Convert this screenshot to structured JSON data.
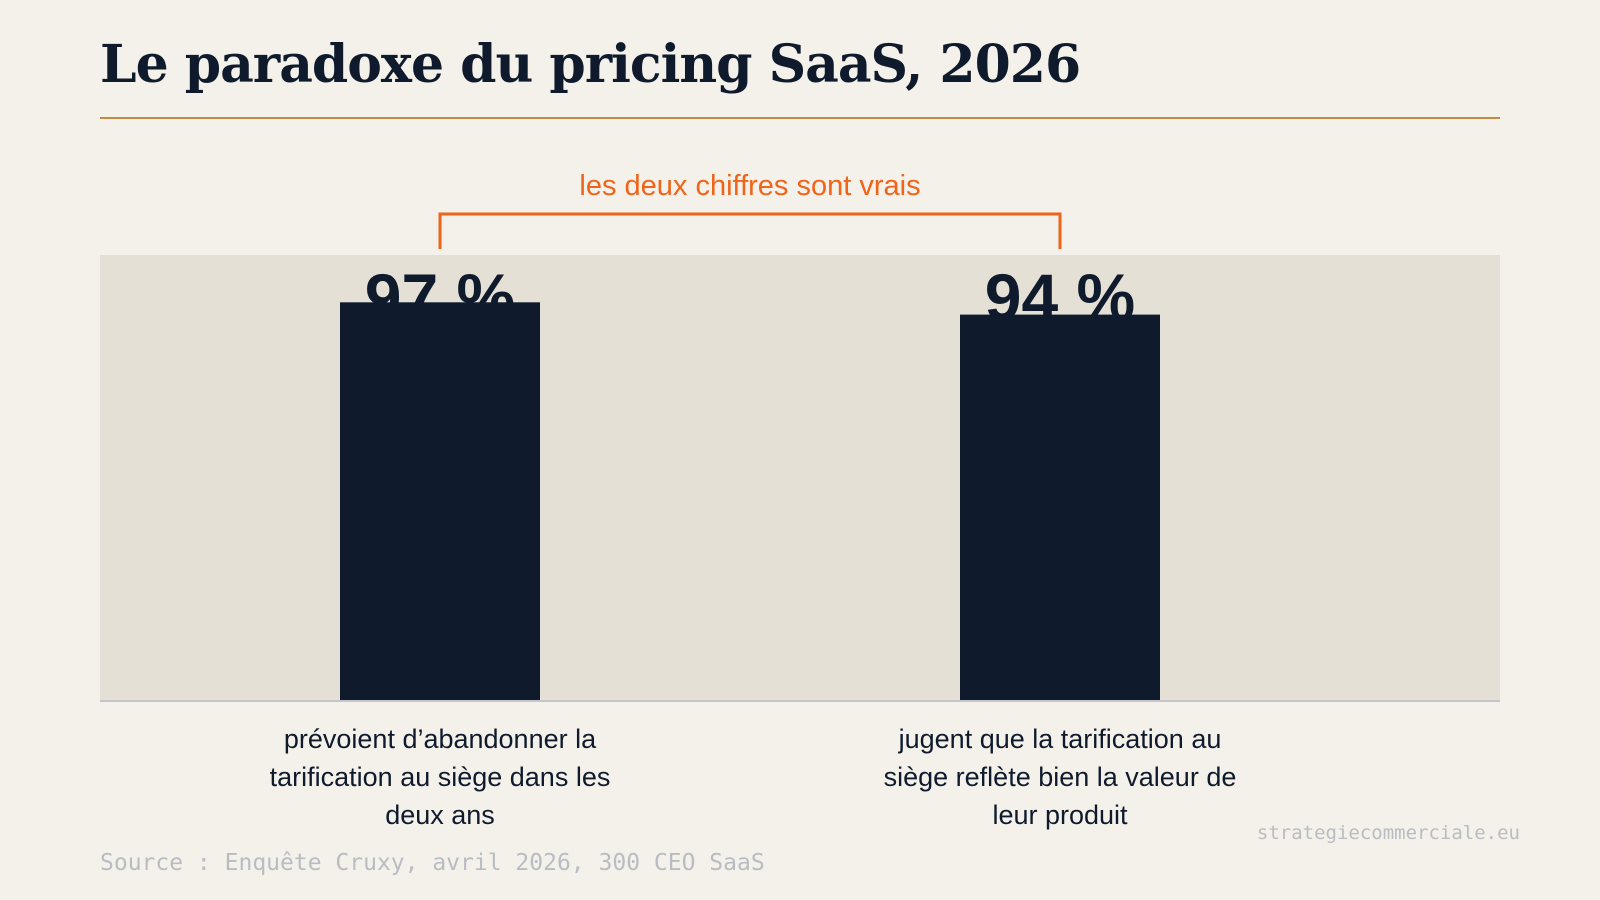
{
  "title": "Le paradoxe du pricing SaaS, 2026",
  "annotation": "les deux chiffres sont vrais",
  "source": "Source : Enquête Cruxy, avril 2026, 300 CEO SaaS",
  "site": "strategiecommerciale.eu",
  "colors": {
    "background": "#f4f1ea",
    "plot_band": "#e5e0d5",
    "bar": "#0f1b2d",
    "accent": "#f0641a",
    "title_rule": "#c98a3f",
    "muted_text": "#b9bcc2"
  },
  "chart_data": {
    "type": "bar",
    "categories": [
      "prévoient d’abandonner la tarification au siège dans les deux ans",
      "jugent que la tarification au siège reflète bien la valeur de leur produit"
    ],
    "values": [
      97,
      94
    ],
    "value_labels": [
      "97 %",
      "94 %"
    ],
    "unit": "%",
    "ylim": [
      0,
      100
    ],
    "title": "Le paradoxe du pricing SaaS, 2026",
    "annotation": "les deux chiffres sont vrais",
    "grid": false,
    "legend": "none"
  }
}
